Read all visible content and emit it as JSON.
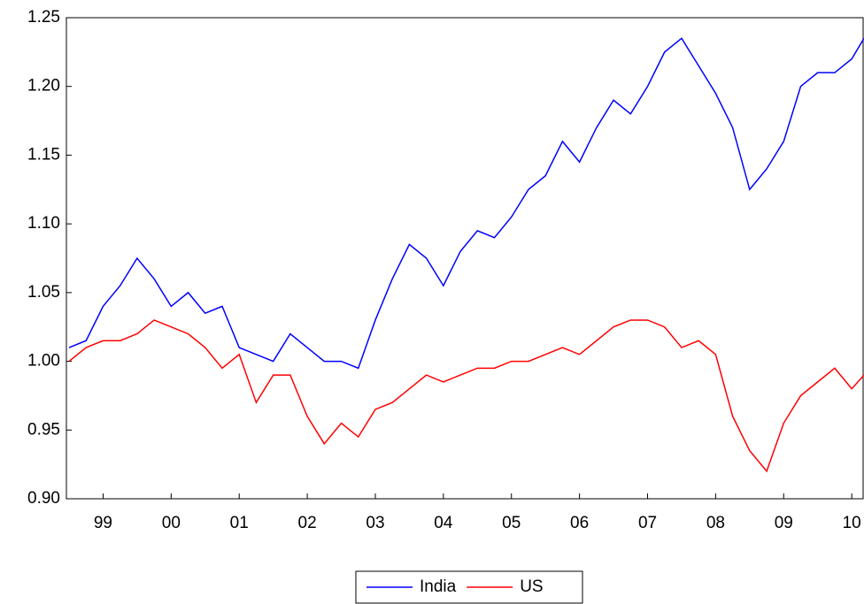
{
  "chart_data": {
    "type": "line",
    "x": [
      1999,
      1999.25,
      1999.5,
      1999.75,
      2000,
      2000.25,
      2000.5,
      2000.75,
      2001,
      2001.25,
      2001.5,
      2001.75,
      2002,
      2002.25,
      2002.5,
      2002.75,
      2003,
      2003.25,
      2003.5,
      2003.75,
      2004,
      2004.25,
      2004.5,
      2004.75,
      2005,
      2005.25,
      2005.5,
      2005.75,
      2006,
      2006.25,
      2006.5,
      2006.75,
      2007,
      2007.25,
      2007.5,
      2007.75,
      2008,
      2008.25,
      2008.5,
      2008.75,
      2009,
      2009.25,
      2009.5,
      2009.75,
      2010,
      2010.25,
      2010.5,
      2010.68
    ],
    "series": [
      {
        "name": "India",
        "color": "#0000ff",
        "values": [
          1.01,
          1.015,
          1.04,
          1.055,
          1.075,
          1.06,
          1.04,
          1.05,
          1.035,
          1.04,
          1.01,
          1.005,
          1.0,
          1.02,
          1.01,
          1.0,
          1.0,
          0.995,
          1.03,
          1.06,
          1.085,
          1.075,
          1.055,
          1.08,
          1.095,
          1.09,
          1.105,
          1.125,
          1.135,
          1.16,
          1.145,
          1.17,
          1.19,
          1.18,
          1.2,
          1.225,
          1.235,
          1.215,
          1.195,
          1.17,
          1.125,
          1.14,
          1.16,
          1.2,
          1.21,
          1.21,
          1.22,
          1.235
        ]
      },
      {
        "name": "US",
        "color": "#ff0000",
        "values": [
          1.0,
          1.01,
          1.015,
          1.015,
          1.02,
          1.03,
          1.025,
          1.02,
          1.01,
          0.995,
          1.005,
          0.97,
          0.99,
          0.99,
          0.96,
          0.94,
          0.955,
          0.945,
          0.965,
          0.97,
          0.98,
          0.99,
          0.985,
          0.99,
          0.995,
          0.995,
          1.0,
          1.0,
          1.005,
          1.01,
          1.005,
          1.015,
          1.025,
          1.03,
          1.03,
          1.025,
          1.01,
          1.015,
          1.005,
          0.96,
          0.935,
          0.92,
          0.955,
          0.975,
          0.985,
          0.995,
          0.98,
          0.99
        ]
      }
    ],
    "xlim": [
      1999,
      2010.68
    ],
    "xticks": [
      {
        "value": 1999.5,
        "label": "99"
      },
      {
        "value": 2000.5,
        "label": "00"
      },
      {
        "value": 2001.5,
        "label": "01"
      },
      {
        "value": 2002.5,
        "label": "02"
      },
      {
        "value": 2003.5,
        "label": "03"
      },
      {
        "value": 2004.5,
        "label": "04"
      },
      {
        "value": 2005.5,
        "label": "05"
      },
      {
        "value": 2006.5,
        "label": "06"
      },
      {
        "value": 2007.5,
        "label": "07"
      },
      {
        "value": 2008.5,
        "label": "08"
      },
      {
        "value": 2009.5,
        "label": "09"
      },
      {
        "value": 2010.5,
        "label": "10"
      }
    ],
    "ylim": [
      0.9,
      1.25
    ],
    "yticks": [
      {
        "value": 0.9,
        "label": "0.90"
      },
      {
        "value": 0.95,
        "label": "0.95"
      },
      {
        "value": 1.0,
        "label": "1.00"
      },
      {
        "value": 1.05,
        "label": "1.05"
      },
      {
        "value": 1.1,
        "label": "1.10"
      },
      {
        "value": 1.15,
        "label": "1.15"
      },
      {
        "value": 1.2,
        "label": "1.20"
      },
      {
        "value": 1.25,
        "label": "1.25"
      }
    ],
    "legend": "bottom"
  }
}
